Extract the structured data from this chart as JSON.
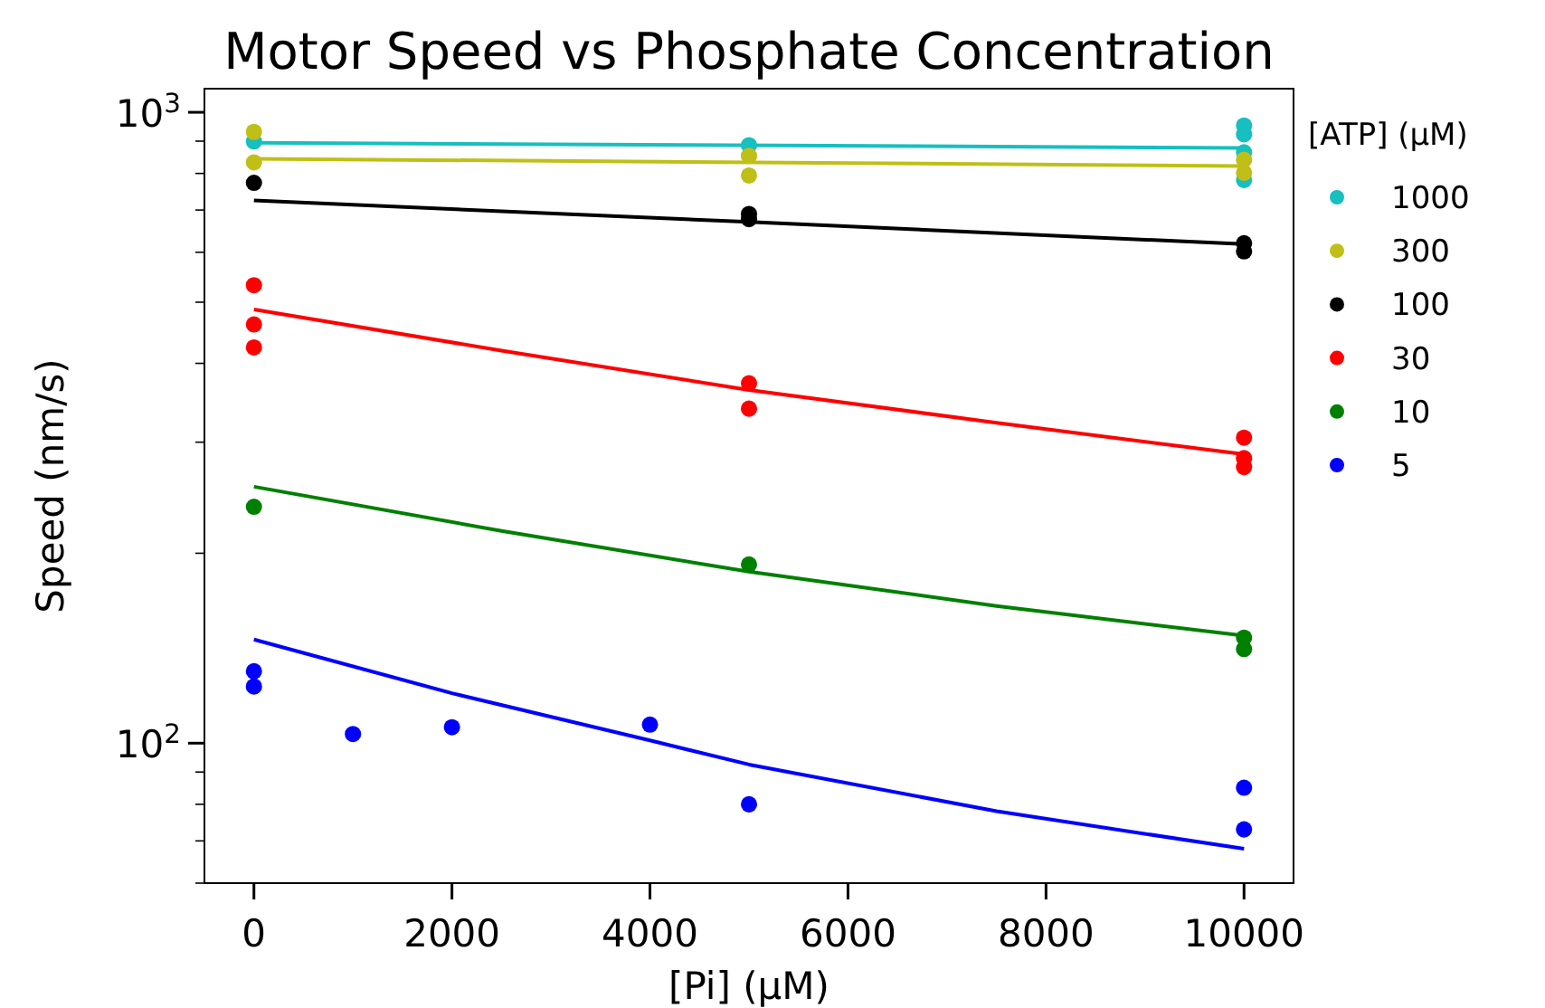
{
  "chart_data": {
    "type": "scatter",
    "title": "Motor Speed vs Phosphate Concentration",
    "xlabel": "[Pi] (μM)",
    "ylabel": "Speed (nm/s)",
    "legend_title": "[ATP] (μM)",
    "legend": "right",
    "marker": "circle",
    "log": "y",
    "grid": false,
    "xlim": [
      -500,
      10500
    ],
    "xticks": [
      0,
      2000,
      4000,
      6000,
      8000,
      10000
    ],
    "ylim": [
      60,
      1090
    ],
    "yticks": [
      {
        "value": 100,
        "label": "10$^{2}$"
      },
      {
        "value": 1000,
        "label": "10$^{3}$"
      },
      {
        "value": 60,
        "label": null
      },
      {
        "value": 70,
        "label": null
      },
      {
        "value": 80,
        "label": null
      },
      {
        "value": 90,
        "label": null
      },
      {
        "value": 200,
        "label": null
      },
      {
        "value": 300,
        "label": null
      },
      {
        "value": 400,
        "label": null
      },
      {
        "value": 500,
        "label": null
      },
      {
        "value": 600,
        "label": null
      },
      {
        "value": 700,
        "label": null
      },
      {
        "value": 800,
        "label": null
      },
      {
        "value": 900,
        "label": null
      }
    ],
    "series": [
      {
        "name": "1000",
        "color": "#17bfbf",
        "x": [
          0,
          5000,
          10000,
          10000,
          10000,
          10000
        ],
        "values": [
          899,
          887,
          953,
          923,
          864,
          781
        ]
      },
      {
        "name": "300",
        "color": "#bfbf17",
        "x": [
          0,
          0,
          5000,
          5000,
          10000,
          10000
        ],
        "values": [
          931,
          833,
          853,
          794,
          841,
          802
        ]
      },
      {
        "name": "100",
        "color": "#000000",
        "x": [
          0,
          5000,
          5000,
          10000,
          10000
        ],
        "values": [
          773,
          690,
          677,
          620,
          602
        ]
      },
      {
        "name": "30",
        "color": "#ff0000",
        "x": [
          0,
          0,
          0,
          5000,
          5000,
          10000,
          10000,
          10000
        ],
        "values": [
          532,
          461,
          424,
          372,
          339,
          305,
          283,
          274
        ]
      },
      {
        "name": "10",
        "color": "#008000",
        "x": [
          0,
          5000,
          10000,
          10000
        ],
        "values": [
          237,
          192,
          147,
          141
        ]
      },
      {
        "name": "5",
        "color": "#0000ff",
        "x": [
          0,
          0,
          1000,
          2000,
          4000,
          5000,
          10000,
          10000
        ],
        "values": [
          130,
          123,
          103.4,
          106,
          107,
          80,
          85,
          73
        ]
      },
      {
        "type": "line",
        "marker": "none",
        "color": "#17bfbf",
        "x": [
          0,
          10000
        ],
        "values": [
          895,
          878
        ]
      },
      {
        "type": "line",
        "marker": "none",
        "color": "#bfbf17",
        "x": [
          0,
          10000
        ],
        "values": [
          844,
          822
        ]
      },
      {
        "type": "line",
        "marker": "none",
        "color": "#000000",
        "x": [
          0,
          5000,
          10000
        ],
        "values": [
          725,
          670,
          618
        ]
      },
      {
        "type": "line",
        "marker": "none",
        "color": "#ff0000",
        "x": [
          0,
          2500,
          5000,
          7500,
          10000
        ],
        "values": [
          487,
          419,
          363,
          322,
          287
        ]
      },
      {
        "type": "line",
        "marker": "none",
        "color": "#008000",
        "x": [
          0,
          2500,
          5000,
          7500,
          10000
        ],
        "values": [
          255,
          217,
          187,
          165,
          148
        ]
      },
      {
        "type": "line",
        "marker": "none",
        "color": "#0000ff",
        "x": [
          0,
          2000,
          4000,
          5000,
          7500,
          10000
        ],
        "values": [
          146,
          120,
          101,
          92.5,
          78,
          68
        ]
      }
    ]
  }
}
